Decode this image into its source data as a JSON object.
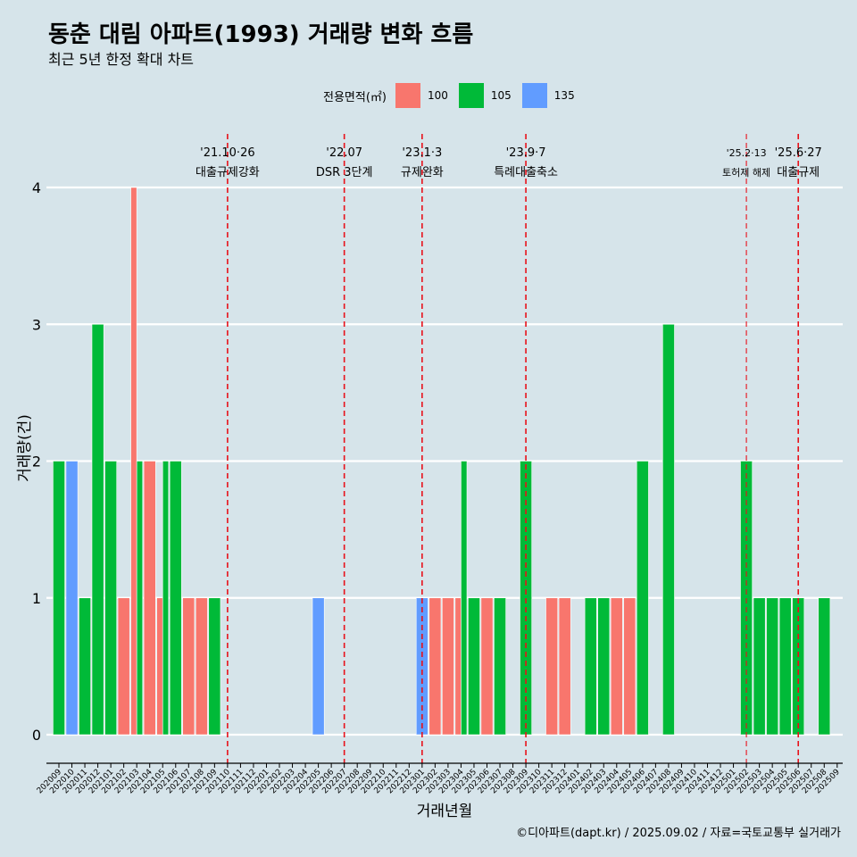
{
  "title": "동춘 대림 아파트(1993) 거래량 변화 흐름",
  "subtitle": "최근 5년 한정 확대 차트",
  "caption": "©디아파트(dapt.kr) / 2025.09.02 / 자료=국토교통부 실거래가",
  "legend": {
    "title": "전용면적(㎡)",
    "items": [
      {
        "label": "100",
        "color": "#f8766d"
      },
      {
        "label": "105",
        "color": "#00ba38"
      },
      {
        "label": "135",
        "color": "#619cff"
      }
    ]
  },
  "chart_data": {
    "type": "bar",
    "title": "동춘 대림 아파트(1993) 거래량 변화 흐름",
    "xlabel": "거래년월",
    "ylabel": "거래량(건)",
    "ylim": [
      0,
      4
    ],
    "yticks": [
      0,
      1,
      2,
      3,
      4
    ],
    "categories": [
      "202009",
      "202010",
      "202011",
      "202012",
      "202101",
      "202102",
      "202103",
      "202104",
      "202105",
      "202106",
      "202107",
      "202108",
      "202109",
      "202110",
      "202111",
      "202112",
      "202201",
      "202202",
      "202203",
      "202204",
      "202205",
      "202206",
      "202207",
      "202208",
      "202209",
      "202210",
      "202211",
      "202212",
      "202301",
      "202302",
      "202303",
      "202304",
      "202305",
      "202306",
      "202307",
      "202308",
      "202309",
      "202310",
      "202311",
      "202312",
      "202401",
      "202402",
      "202403",
      "202404",
      "202405",
      "202406",
      "202407",
      "202408",
      "202409",
      "202410",
      "202411",
      "202412",
      "202501",
      "202502",
      "202503",
      "202504",
      "202505",
      "202506",
      "202507",
      "202508",
      "202509"
    ],
    "series": [
      {
        "name": "100",
        "color": "#f8766d",
        "values": [
          0,
          0,
          0,
          0,
          0,
          1,
          4,
          2,
          1,
          0,
          1,
          1,
          0,
          0,
          0,
          0,
          0,
          0,
          0,
          0,
          0,
          0,
          0,
          0,
          0,
          0,
          0,
          0,
          0,
          1,
          1,
          1,
          0,
          1,
          0,
          0,
          0,
          0,
          1,
          1,
          0,
          0,
          0,
          1,
          1,
          0,
          0,
          0,
          0,
          0,
          0,
          0,
          0,
          0,
          0,
          0,
          0,
          0,
          0,
          0,
          0
        ]
      },
      {
        "name": "105",
        "color": "#00ba38",
        "values": [
          2,
          0,
          1,
          3,
          2,
          0,
          2,
          0,
          2,
          2,
          0,
          0,
          1,
          0,
          0,
          0,
          0,
          0,
          0,
          0,
          0,
          0,
          0,
          0,
          0,
          0,
          0,
          0,
          0,
          0,
          0,
          2,
          1,
          0,
          1,
          0,
          2,
          0,
          0,
          0,
          0,
          1,
          1,
          0,
          0,
          2,
          0,
          3,
          0,
          0,
          0,
          0,
          0,
          2,
          1,
          1,
          1,
          1,
          0,
          1,
          0
        ]
      },
      {
        "name": "135",
        "color": "#619cff",
        "values": [
          0,
          2,
          0,
          0,
          0,
          0,
          0,
          0,
          0,
          0,
          0,
          0,
          0,
          0,
          0,
          0,
          0,
          0,
          0,
          0,
          1,
          0,
          0,
          0,
          0,
          0,
          0,
          0,
          1,
          0,
          0,
          0,
          0,
          0,
          0,
          0,
          0,
          0,
          0,
          0,
          0,
          0,
          0,
          0,
          0,
          0,
          0,
          0,
          0,
          0,
          0,
          0,
          0,
          0,
          0,
          0,
          0,
          0,
          0,
          0,
          0
        ]
      }
    ],
    "events": [
      {
        "month": "202110",
        "date": "'21.10·26",
        "label": "대출규제강화"
      },
      {
        "month": "202207",
        "date": "'22.07",
        "label": "DSR 3단계"
      },
      {
        "month": "202301",
        "date": "'23.1·3",
        "label": "규제완화"
      },
      {
        "month": "202309",
        "date": "'23.9·7",
        "label": "특례대출축소"
      },
      {
        "month": "202502",
        "date": "'25.2·13",
        "label": "토허제 해제",
        "small": true
      },
      {
        "month": "202506",
        "date": "'25.6·27",
        "label": "대출규제"
      }
    ]
  }
}
